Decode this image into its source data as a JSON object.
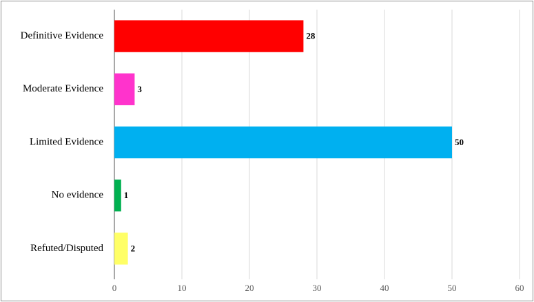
{
  "chart_data": {
    "type": "hbar",
    "categories": [
      "Definitive Evidence",
      "Moderate Evidence",
      "Limited Evidence",
      "No evidence",
      "Refuted/Disputed"
    ],
    "values": [
      28,
      3,
      50,
      1,
      2
    ],
    "colors": [
      "#ff0000",
      "#ff33cc",
      "#00b0f0",
      "#00b050",
      "#ffff66"
    ],
    "xlim": [
      0,
      60
    ],
    "xticks": [
      0,
      10,
      20,
      30,
      40,
      50,
      60
    ],
    "grid": true
  }
}
